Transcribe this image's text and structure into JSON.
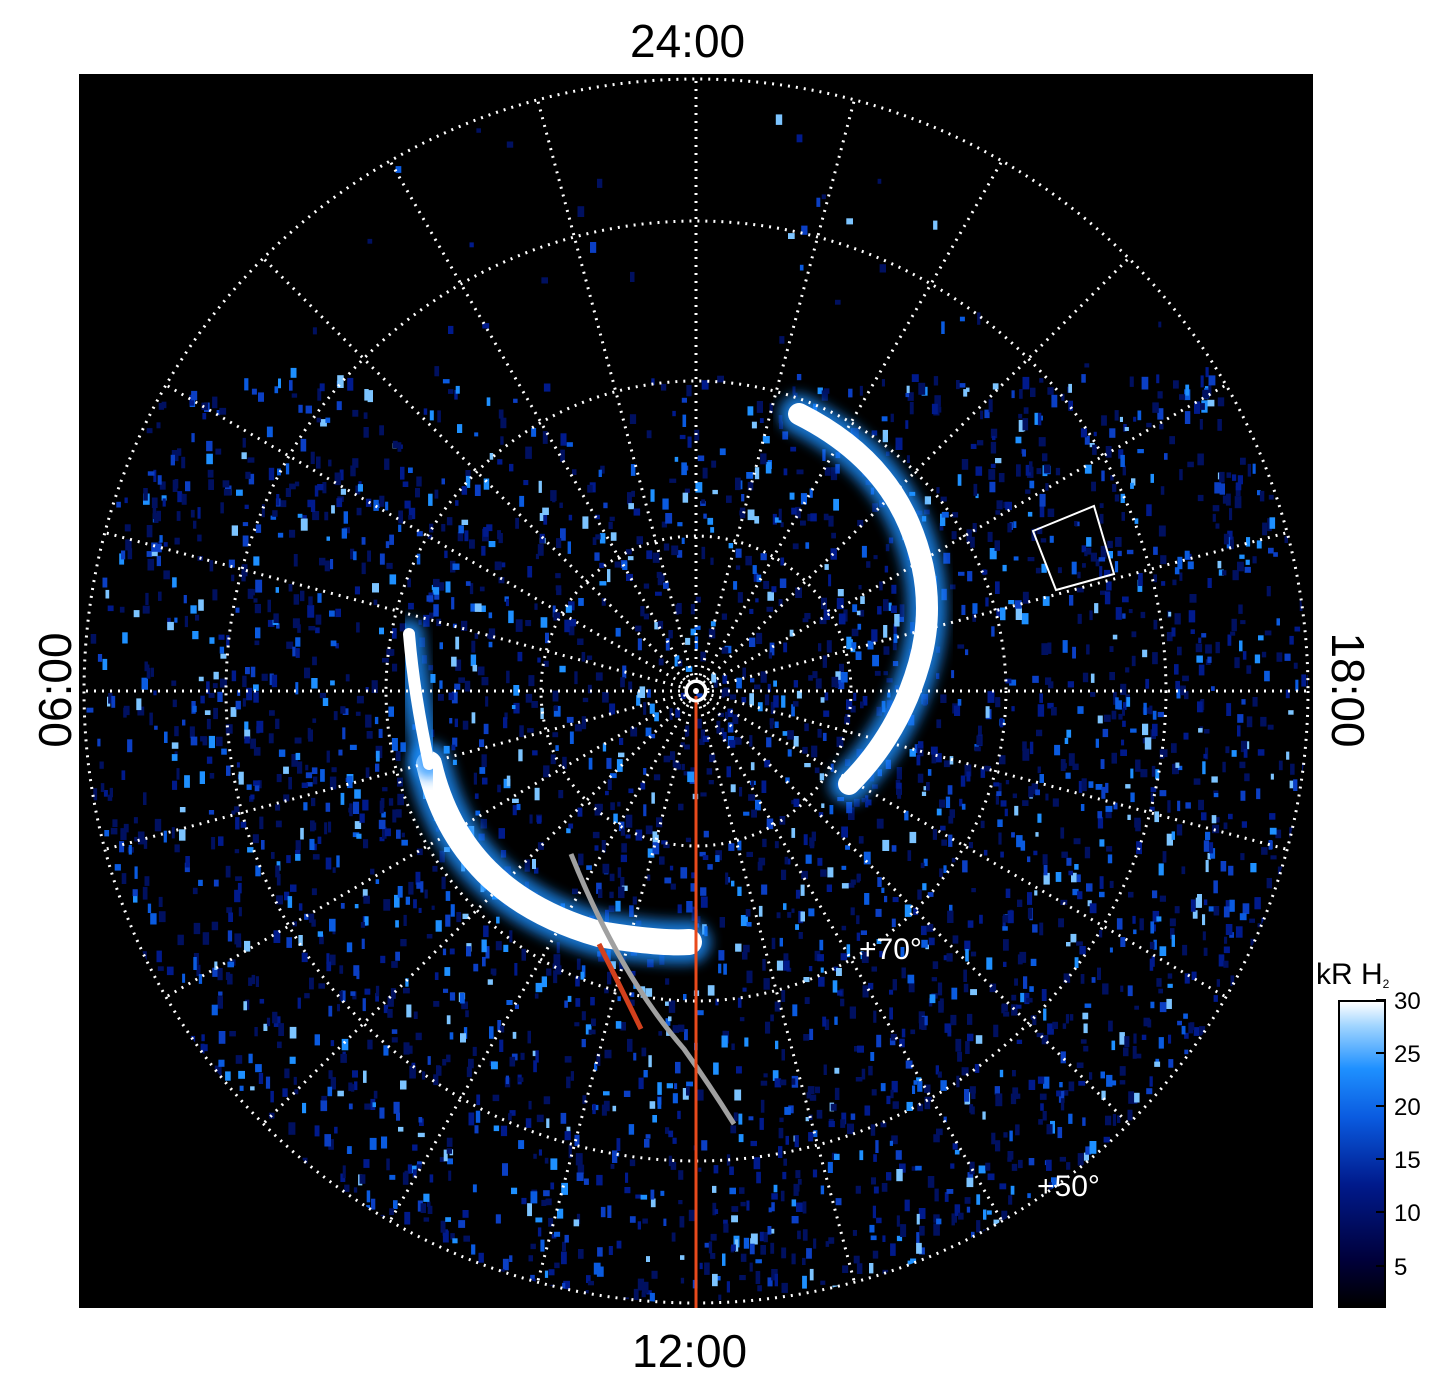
{
  "figure": {
    "local_time_labels": {
      "top": "24:00",
      "bottom": "12:00",
      "left": "06:00",
      "right": "18:00"
    },
    "latitude_labels": [
      "+70°",
      "+50°"
    ],
    "colorbar": {
      "title_main": "kR H",
      "title_sub": "2",
      "ticks": [
        "30",
        "25",
        "20",
        "15",
        "10",
        "5"
      ],
      "tick_values": [
        30,
        25,
        20,
        15,
        10,
        5
      ],
      "range": [
        1,
        30
      ],
      "colors": [
        "#000000",
        "#001a8c",
        "#1e90ff",
        "#ffffff"
      ]
    },
    "overlay_colors": {
      "meridian_line": "#e84a1c",
      "trajectory": "#a0a0a0",
      "trajectory_highlight": "#d2401c",
      "grid": "#ffffff"
    }
  }
}
